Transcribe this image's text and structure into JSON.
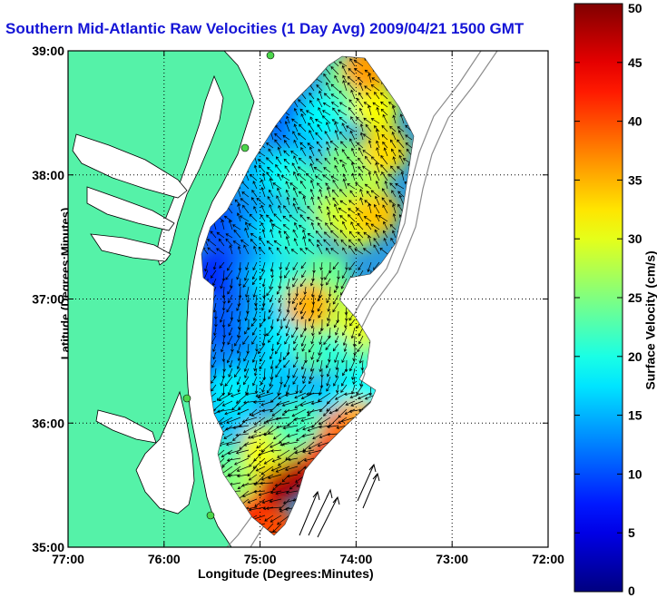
{
  "chart_data": {
    "type": "heatmap",
    "title": "Southern Mid-Atlantic Raw Velocities (1 Day Avg) 2009/04/21 1500 GMT",
    "xlabel": "Longitude (Degrees:Minutes)",
    "ylabel": "Latitude (Degrees:Minutes)",
    "colorbar_label": "Surface Velocity (cm/s)",
    "xlim": [
      -77,
      -72
    ],
    "ylim": [
      35,
      39
    ],
    "x_ticks": [
      {
        "value": -77,
        "label": "77:00"
      },
      {
        "value": -76,
        "label": "76:00"
      },
      {
        "value": -75,
        "label": "75:00"
      },
      {
        "value": -74,
        "label": "74:00"
      },
      {
        "value": -73,
        "label": "73:00"
      },
      {
        "value": -72,
        "label": "72:00"
      }
    ],
    "y_ticks": [
      {
        "value": 35,
        "label": "35:00"
      },
      {
        "value": 36,
        "label": "36:00"
      },
      {
        "value": 37,
        "label": "37:00"
      },
      {
        "value": 38,
        "label": "38:00"
      },
      {
        "value": 39,
        "label": "39:00"
      }
    ],
    "colorbar": {
      "min": 0,
      "max": 50,
      "ticks": [
        0,
        5,
        10,
        15,
        20,
        25,
        30,
        35,
        40,
        45,
        50
      ]
    },
    "grid": true,
    "field_cells": [
      [
        -75.55,
        36.0,
        12
      ],
      [
        -75.45,
        36.0,
        13
      ],
      [
        -75.35,
        36.05,
        15
      ],
      [
        -75.25,
        36.1,
        16
      ],
      [
        -75.5,
        36.4,
        13
      ],
      [
        -75.3,
        36.4,
        12
      ],
      [
        -75.1,
        36.5,
        14
      ],
      [
        -74.9,
        36.4,
        17
      ],
      [
        -74.7,
        36.3,
        16
      ],
      [
        -75.5,
        36.8,
        11
      ],
      [
        -75.3,
        36.8,
        10
      ],
      [
        -75.1,
        36.8,
        12
      ],
      [
        -74.9,
        36.8,
        16
      ],
      [
        -74.7,
        36.7,
        18
      ],
      [
        -75.45,
        37.2,
        8
      ],
      [
        -75.25,
        37.2,
        9
      ],
      [
        -75.05,
        37.2,
        13
      ],
      [
        -74.85,
        37.15,
        18
      ],
      [
        -74.65,
        37.1,
        21
      ],
      [
        -75.4,
        37.6,
        9
      ],
      [
        -75.2,
        37.6,
        11
      ],
      [
        -75.0,
        37.6,
        14
      ],
      [
        -74.8,
        37.55,
        18
      ],
      [
        -74.6,
        37.5,
        21
      ],
      [
        -75.1,
        38.0,
        14
      ],
      [
        -74.9,
        38.0,
        16
      ],
      [
        -74.7,
        38.0,
        19
      ],
      [
        -74.5,
        37.9,
        22
      ],
      [
        -74.85,
        38.45,
        13
      ],
      [
        -74.65,
        38.4,
        11
      ],
      [
        -74.45,
        38.35,
        16
      ],
      [
        -74.2,
        37.7,
        28
      ],
      [
        -74.0,
        37.6,
        30
      ],
      [
        -73.8,
        37.7,
        34
      ],
      [
        -74.3,
        37.2,
        24
      ],
      [
        -73.9,
        38.0,
        28
      ],
      [
        -74.1,
        38.1,
        25
      ],
      [
        -73.7,
        38.2,
        33
      ],
      [
        -74.3,
        38.5,
        19
      ],
      [
        -74.0,
        38.6,
        22
      ],
      [
        -73.8,
        38.55,
        31
      ],
      [
        -74.1,
        38.8,
        24
      ],
      [
        -73.9,
        38.85,
        36
      ],
      [
        -74.4,
        36.6,
        24
      ],
      [
        -74.2,
        36.6,
        21
      ],
      [
        -74.0,
        36.65,
        20
      ],
      [
        -73.85,
        36.5,
        23
      ],
      [
        -74.3,
        36.9,
        28
      ],
      [
        -74.1,
        36.9,
        27
      ],
      [
        -74.5,
        36.95,
        35
      ],
      [
        -73.95,
        36.8,
        30
      ],
      [
        -74.25,
        36.2,
        16
      ],
      [
        -74.05,
        36.2,
        18
      ],
      [
        -73.9,
        36.3,
        19
      ],
      [
        -74.0,
        36.0,
        35
      ],
      [
        -74.2,
        35.9,
        38
      ],
      [
        -74.45,
        35.75,
        44
      ],
      [
        -74.7,
        35.6,
        47
      ],
      [
        -74.9,
        35.5,
        48
      ],
      [
        -75.1,
        35.45,
        45
      ],
      [
        -75.2,
        35.3,
        40
      ],
      [
        -75.25,
        35.55,
        28
      ],
      [
        -75.05,
        35.2,
        44
      ],
      [
        -74.85,
        35.12,
        40
      ],
      [
        -74.95,
        35.8,
        31
      ],
      [
        -74.7,
        35.9,
        27
      ],
      [
        -75.45,
        35.7,
        22
      ],
      [
        -75.4,
        35.5,
        25
      ],
      [
        -75.3,
        36.25,
        18
      ],
      [
        -74.6,
        36.0,
        22
      ]
    ]
  }
}
